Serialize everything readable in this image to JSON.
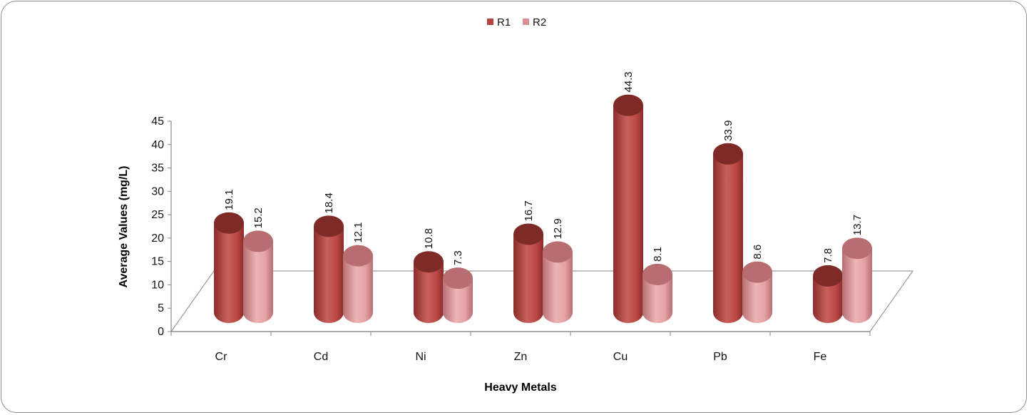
{
  "chart_data": {
    "type": "bar",
    "style": "3d-cylinder",
    "categories": [
      "Cr",
      "Cd",
      "Ni",
      "Zn",
      "Cu",
      "Pb",
      "Fe"
    ],
    "series": [
      {
        "name": "R1",
        "values": [
          19.1,
          18.4,
          10.8,
          16.7,
          44.3,
          33.9,
          7.8
        ],
        "color": "#B5433F"
      },
      {
        "name": "R2",
        "values": [
          15.2,
          12.1,
          7.3,
          12.9,
          8.1,
          8.6,
          13.7
        ],
        "color": "#D98E91"
      }
    ],
    "yticks": [
      "0",
      "5",
      "10",
      "15",
      "20",
      "25",
      "30",
      "35",
      "40",
      "45"
    ],
    "xlabel": "Heavy Metals",
    "ylabel": "Average Values  (mg/L)",
    "ylim": [
      0,
      45
    ],
    "legend_position": "top-center",
    "grid": false
  }
}
